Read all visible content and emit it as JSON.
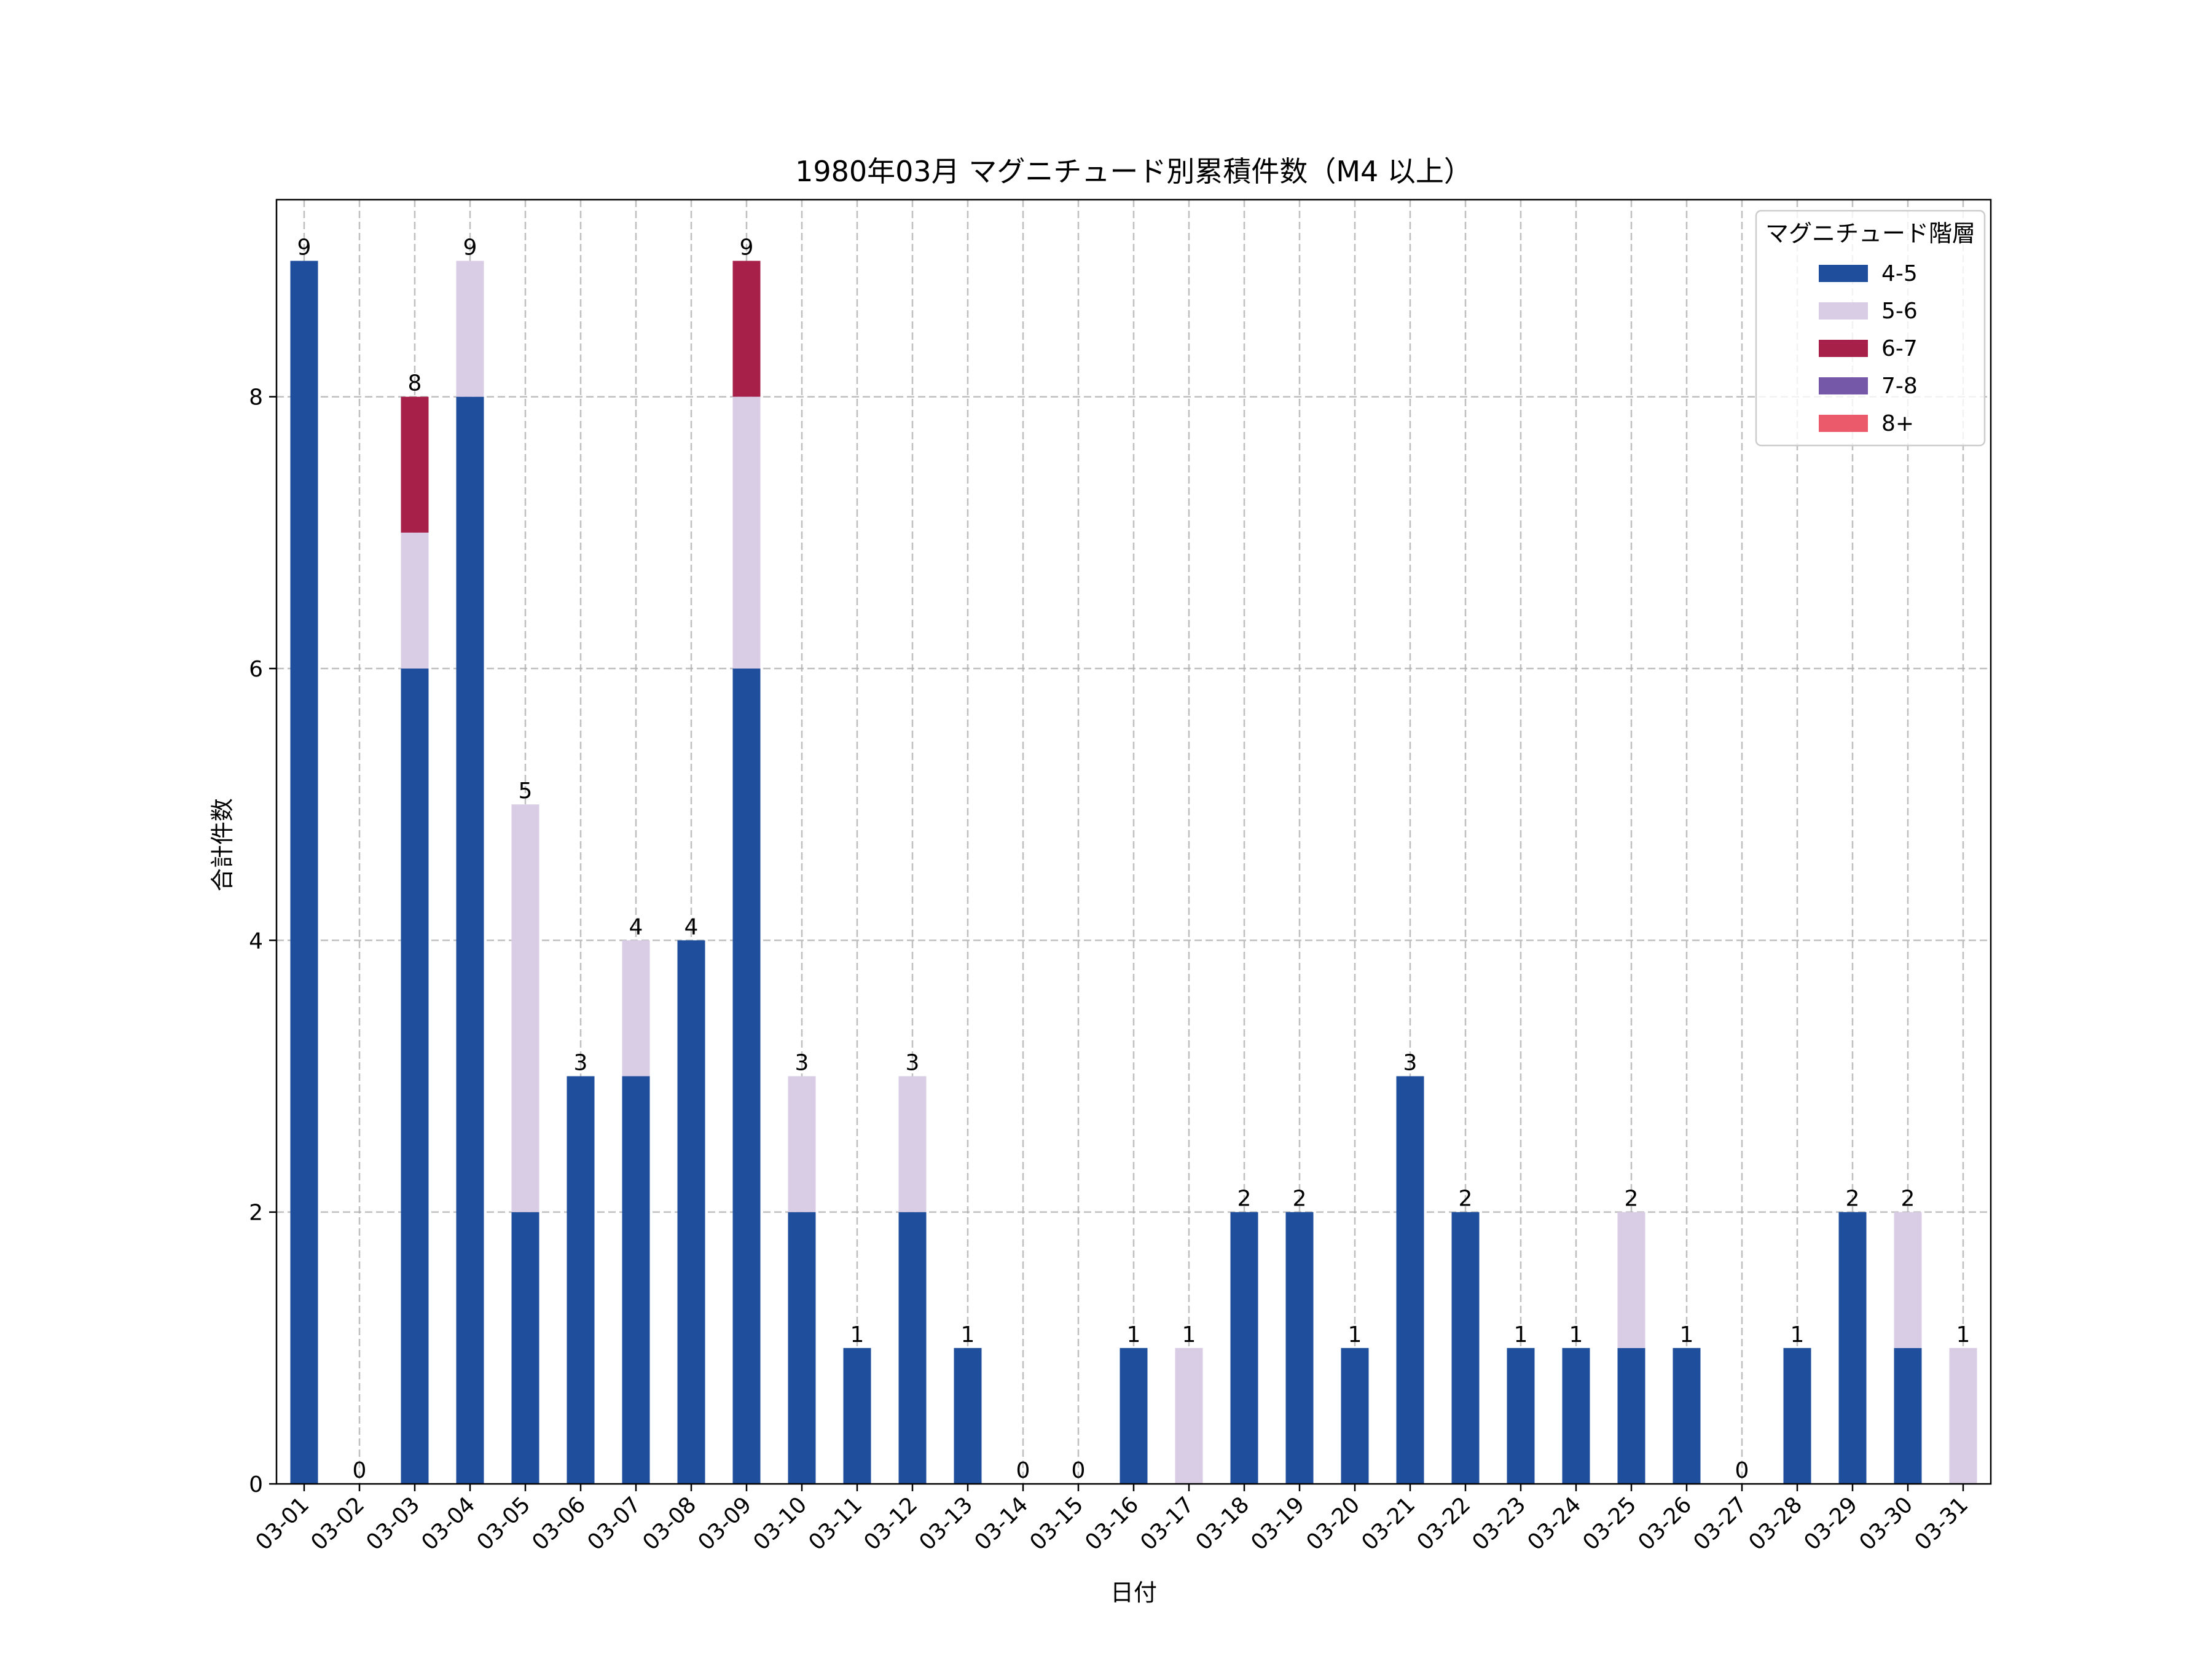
{
  "chart_data": {
    "type": "bar",
    "stacked": true,
    "title": "1980年03月 マグニチュード別累積件数（M4 以上）",
    "xlabel": "日付",
    "ylabel": "合計件数",
    "ylim": [
      0,
      9.45
    ],
    "yticks": [
      0,
      2,
      4,
      6,
      8
    ],
    "grid": true,
    "legend": {
      "title": "マグニチュード階層",
      "placement": "top-right"
    },
    "categories": [
      "03-01",
      "03-02",
      "03-03",
      "03-04",
      "03-05",
      "03-06",
      "03-07",
      "03-08",
      "03-09",
      "03-10",
      "03-11",
      "03-12",
      "03-13",
      "03-14",
      "03-15",
      "03-16",
      "03-17",
      "03-18",
      "03-19",
      "03-20",
      "03-21",
      "03-22",
      "03-23",
      "03-24",
      "03-25",
      "03-26",
      "03-27",
      "03-28",
      "03-29",
      "03-30",
      "03-31"
    ],
    "series": [
      {
        "name": "4-5",
        "color": "#1f4e9c",
        "values": [
          9,
          0,
          6,
          8,
          2,
          3,
          3,
          4,
          6,
          2,
          1,
          2,
          1,
          0,
          0,
          1,
          0,
          2,
          2,
          1,
          3,
          2,
          1,
          1,
          1,
          1,
          0,
          1,
          2,
          1,
          0
        ]
      },
      {
        "name": "5-6",
        "color": "#d9cde5",
        "values": [
          0,
          0,
          1,
          1,
          3,
          0,
          1,
          0,
          2,
          1,
          0,
          1,
          0,
          0,
          0,
          0,
          1,
          0,
          0,
          0,
          0,
          0,
          0,
          0,
          1,
          0,
          0,
          0,
          0,
          1,
          1
        ]
      },
      {
        "name": "6-7",
        "color": "#a6204a",
        "values": [
          0,
          0,
          1,
          0,
          0,
          0,
          0,
          0,
          1,
          0,
          0,
          0,
          0,
          0,
          0,
          0,
          0,
          0,
          0,
          0,
          0,
          0,
          0,
          0,
          0,
          0,
          0,
          0,
          0,
          0,
          0
        ]
      },
      {
        "name": "7-8",
        "color": "#7559a8",
        "values": [
          0,
          0,
          0,
          0,
          0,
          0,
          0,
          0,
          0,
          0,
          0,
          0,
          0,
          0,
          0,
          0,
          0,
          0,
          0,
          0,
          0,
          0,
          0,
          0,
          0,
          0,
          0,
          0,
          0,
          0,
          0
        ]
      },
      {
        "name": "8+",
        "color": "#ea5a6a",
        "values": [
          0,
          0,
          0,
          0,
          0,
          0,
          0,
          0,
          0,
          0,
          0,
          0,
          0,
          0,
          0,
          0,
          0,
          0,
          0,
          0,
          0,
          0,
          0,
          0,
          0,
          0,
          0,
          0,
          0,
          0,
          0
        ]
      }
    ],
    "totals": [
      9,
      0,
      8,
      9,
      5,
      3,
      4,
      4,
      9,
      3,
      1,
      3,
      1,
      0,
      0,
      1,
      1,
      2,
      2,
      1,
      3,
      2,
      1,
      1,
      2,
      1,
      0,
      1,
      2,
      2,
      1
    ]
  }
}
